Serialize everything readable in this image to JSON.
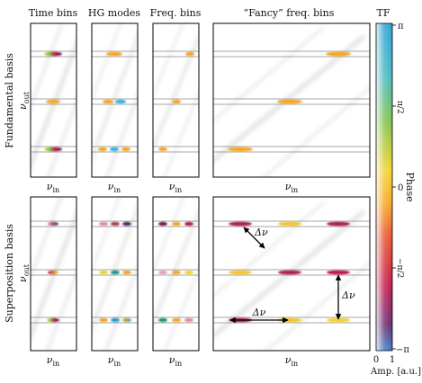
{
  "column_titles": [
    "Time bins",
    "HG modes",
    "Freq. bins",
    "“Fancy” freq. bins"
  ],
  "row_titles": [
    "Fundamental basis",
    "Superposition basis"
  ],
  "axis": {
    "x": "ν",
    "x_sub": "in",
    "y": "ν",
    "y_sub": "out"
  },
  "colorbar": {
    "title": "TF",
    "phase_label": "Phase",
    "ticks": [
      "π",
      "π/2",
      "0",
      "−π/2",
      "−π"
    ],
    "amp_label": "Amp. [a.u.]",
    "amp_ticks": [
      "0",
      "1"
    ],
    "colors": [
      "#3bb0e0",
      "#7ac24a",
      "#f5c62a",
      "#f08a24",
      "#c2184a",
      "#6a1a5a",
      "#3a6fb5"
    ]
  },
  "annotation": {
    "delta": "Δν"
  }
}
